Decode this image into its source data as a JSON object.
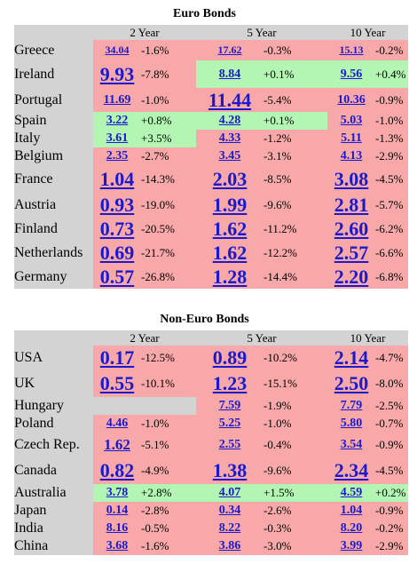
{
  "euro": {
    "title": "Euro Bonds",
    "headers": [
      "2 Year",
      "5 Year",
      "10 Year"
    ],
    "rows": [
      {
        "country": "Greece",
        "cells": [
          [
            "34.04",
            "-1.6%",
            "red",
            1,
            1
          ],
          [
            "17.62",
            "-0.3%",
            "red",
            1,
            1
          ],
          [
            "15.13",
            "-0.2%",
            "red",
            1,
            1
          ]
        ]
      },
      {
        "country": "Ireland",
        "cells": [
          [
            "9.93",
            "-7.8%",
            "red",
            4,
            3
          ],
          [
            "8.84",
            "+0.1%",
            "green",
            2,
            1
          ],
          [
            "9.56",
            "+0.4%",
            "green",
            2,
            1
          ]
        ]
      },
      {
        "country": "Portugal",
        "cells": [
          [
            "11.69",
            "-1.0%",
            "red",
            2,
            1
          ],
          [
            "11.44",
            "-5.4%",
            "red",
            4,
            3
          ],
          [
            "10.36",
            "-0.9%",
            "red",
            2,
            1
          ]
        ]
      },
      {
        "country": "Spain",
        "cells": [
          [
            "3.22",
            "+0.8%",
            "green",
            2,
            1
          ],
          [
            "4.28",
            "+0.1%",
            "green",
            2,
            1
          ],
          [
            "5.03",
            "-1.0%",
            "red",
            2,
            1
          ]
        ]
      },
      {
        "country": "Italy",
        "cells": [
          [
            "3.61",
            "+3.5%",
            "green",
            2,
            2
          ],
          [
            "4.33",
            "-1.2%",
            "red",
            2,
            1
          ],
          [
            "5.11",
            "-1.3%",
            "red",
            2,
            1
          ]
        ]
      },
      {
        "country": "Belgium",
        "cells": [
          [
            "2.35",
            "-2.7%",
            "red",
            2,
            2
          ],
          [
            "3.45",
            "-3.1%",
            "red",
            2,
            2
          ],
          [
            "4.13",
            "-2.9%",
            "red",
            2,
            2
          ]
        ]
      },
      {
        "country": "France",
        "cells": [
          [
            "1.04",
            "-14.3%",
            "red",
            4,
            3
          ],
          [
            "2.03",
            "-8.5%",
            "red",
            4,
            3
          ],
          [
            "3.08",
            "-4.5%",
            "red",
            4,
            3
          ]
        ]
      },
      {
        "country": "Austria",
        "cells": [
          [
            "0.93",
            "-19.0%",
            "red",
            4,
            3
          ],
          [
            "1.99",
            "-9.6%",
            "red",
            4,
            3
          ],
          [
            "2.81",
            "-5.7%",
            "red",
            4,
            3
          ]
        ]
      },
      {
        "country": "Finland",
        "cells": [
          [
            "0.73",
            "-20.5%",
            "red",
            4,
            3
          ],
          [
            "1.62",
            "-11.2%",
            "red",
            4,
            3
          ],
          [
            "2.60",
            "-6.2%",
            "red",
            4,
            3
          ]
        ]
      },
      {
        "country": "Netherlands",
        "cells": [
          [
            "0.69",
            "-21.7%",
            "red",
            4,
            3
          ],
          [
            "1.62",
            "-12.2%",
            "red",
            4,
            3
          ],
          [
            "2.57",
            "-6.6%",
            "red",
            4,
            3
          ]
        ]
      },
      {
        "country": "Germany",
        "cells": [
          [
            "0.57",
            "-26.8%",
            "red",
            4,
            3
          ],
          [
            "1.28",
            "-14.4%",
            "red",
            4,
            3
          ],
          [
            "2.20",
            "-6.8%",
            "red",
            4,
            3
          ]
        ]
      }
    ]
  },
  "nonEuro": {
    "title": "Non-Euro Bonds",
    "headers": [
      "2 Year",
      "5 Year",
      "10 Year"
    ],
    "rows": [
      {
        "country": "USA",
        "cells": [
          [
            "0.17",
            "-12.5%",
            "red",
            4,
            3
          ],
          [
            "0.89",
            "-10.2%",
            "red",
            4,
            3
          ],
          [
            "2.14",
            "-4.7%",
            "red",
            4,
            3
          ]
        ]
      },
      {
        "country": "UK",
        "cells": [
          [
            "0.55",
            "-10.1%",
            "red",
            4,
            3
          ],
          [
            "1.23",
            "-15.1%",
            "red",
            4,
            3
          ],
          [
            "2.50",
            "-8.0%",
            "red",
            4,
            3
          ]
        ]
      },
      {
        "country": "Hungary",
        "cells": [
          [
            "",
            "",
            "grey",
            0,
            0
          ],
          [
            "7.59",
            "-1.9%",
            "red",
            2,
            1
          ],
          [
            "7.79",
            "-2.5%",
            "red",
            2,
            2
          ]
        ]
      },
      {
        "country": "Poland",
        "cells": [
          [
            "4.46",
            "-1.0%",
            "red",
            2,
            1
          ],
          [
            "5.25",
            "-1.0%",
            "red",
            2,
            1
          ],
          [
            "5.80",
            "-0.7%",
            "red",
            2,
            1
          ]
        ]
      },
      {
        "country": "Czech Rep.",
        "cells": [
          [
            "1.62",
            "-5.1%",
            "red",
            3,
            2
          ],
          [
            "2.55",
            "-0.4%",
            "red",
            2,
            1
          ],
          [
            "3.54",
            "-0.9%",
            "red",
            2,
            1
          ]
        ]
      },
      {
        "country": "Canada",
        "cells": [
          [
            "0.82",
            "-4.9%",
            "red",
            4,
            2
          ],
          [
            "1.38",
            "-9.6%",
            "red",
            4,
            3
          ],
          [
            "2.34",
            "-4.5%",
            "red",
            4,
            3
          ]
        ]
      },
      {
        "country": "Australia",
        "cells": [
          [
            "3.78",
            "+2.8%",
            "green",
            2,
            2
          ],
          [
            "4.07",
            "+1.5%",
            "green",
            2,
            1
          ],
          [
            "4.59",
            "+0.2%",
            "green",
            2,
            1
          ]
        ]
      },
      {
        "country": "Japan",
        "cells": [
          [
            "0.14",
            "-2.8%",
            "red",
            2,
            2
          ],
          [
            "0.34",
            "-2.6%",
            "red",
            2,
            2
          ],
          [
            "1.04",
            "-0.9%",
            "red",
            2,
            1
          ]
        ]
      },
      {
        "country": "India",
        "cells": [
          [
            "8.16",
            "-0.5%",
            "red",
            2,
            1
          ],
          [
            "8.22",
            "-0.3%",
            "red",
            2,
            1
          ],
          [
            "8.20",
            "-0.2%",
            "red",
            2,
            1
          ]
        ]
      },
      {
        "country": "China",
        "cells": [
          [
            "3.68",
            "-1.6%",
            "red",
            2,
            1
          ],
          [
            "3.86",
            "-3.0%",
            "red",
            2,
            2
          ],
          [
            "3.99",
            "-2.9%",
            "red",
            2,
            2
          ]
        ]
      }
    ]
  },
  "colors": {
    "red": "#f8a8a8",
    "green": "#b3f5b3",
    "grey": "#d3d3d3",
    "link": "#1a1acc"
  }
}
